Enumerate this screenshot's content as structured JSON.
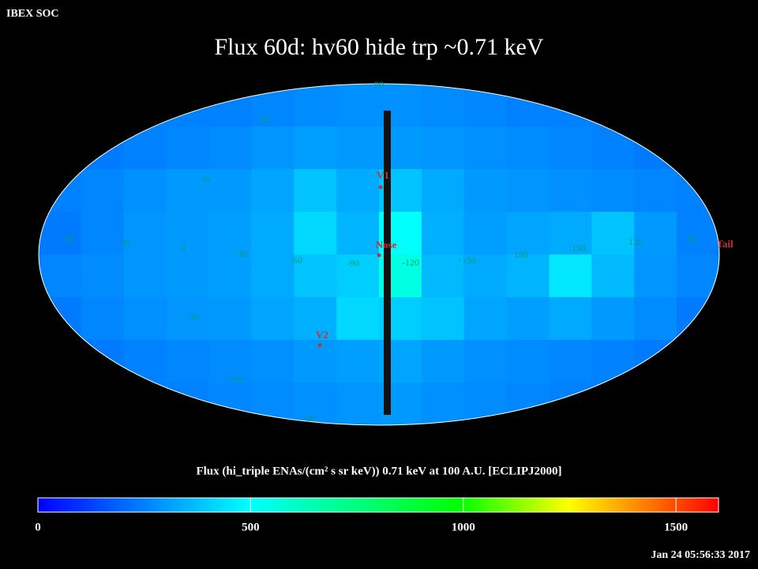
{
  "header": {
    "corner": "IBEX SOC",
    "timestamp": "Jan 24 05:56:33 2017"
  },
  "chart_data": {
    "type": "heatmap",
    "title": "Flux   60d: hv60 hide trp ~0.71 keV",
    "z": [
      [
        250,
        250,
        250,
        250,
        250,
        260,
        270,
        280,
        280,
        270,
        260,
        250,
        250,
        250,
        250,
        250
      ],
      [
        230,
        240,
        250,
        260,
        270,
        290,
        310,
        300,
        300,
        290,
        280,
        270,
        260,
        250,
        240,
        230
      ],
      [
        250,
        260,
        280,
        300,
        300,
        320,
        380,
        330,
        380,
        330,
        300,
        290,
        280,
        270,
        260,
        250
      ],
      [
        240,
        260,
        290,
        300,
        310,
        330,
        420,
        350,
        500,
        340,
        310,
        320,
        330,
        380,
        300,
        250
      ],
      [
        260,
        270,
        290,
        300,
        310,
        330,
        380,
        400,
        550,
        360,
        330,
        350,
        450,
        360,
        290,
        260
      ],
      [
        240,
        260,
        280,
        290,
        300,
        320,
        340,
        420,
        400,
        380,
        320,
        310,
        330,
        300,
        270,
        240
      ],
      [
        230,
        240,
        250,
        260,
        270,
        280,
        300,
        310,
        320,
        300,
        280,
        270,
        260,
        250,
        240,
        230
      ],
      [
        240,
        240,
        250,
        250,
        260,
        270,
        280,
        290,
        300,
        280,
        270,
        260,
        250,
        250,
        240,
        240
      ]
    ],
    "zlim": [
      0,
      1600
    ],
    "zticks": [
      0,
      500,
      1000,
      1500
    ],
    "colorbar_label": "Flux (hi_triple ENAs/(cm² s sr keV))  0.71 keV at 100 A.U. [ECLIPJ2000]",
    "lon_labels": [
      "60",
      "30",
      "0",
      "-30",
      "-60",
      "-90",
      "-120",
      "-150",
      "180",
      "150",
      "120",
      "90"
    ],
    "lat_labels": [
      "90",
      "60",
      "30",
      "-30",
      "-60",
      "-90"
    ],
    "markers": [
      "V1",
      "Nose",
      "V2",
      "Tail"
    ]
  }
}
